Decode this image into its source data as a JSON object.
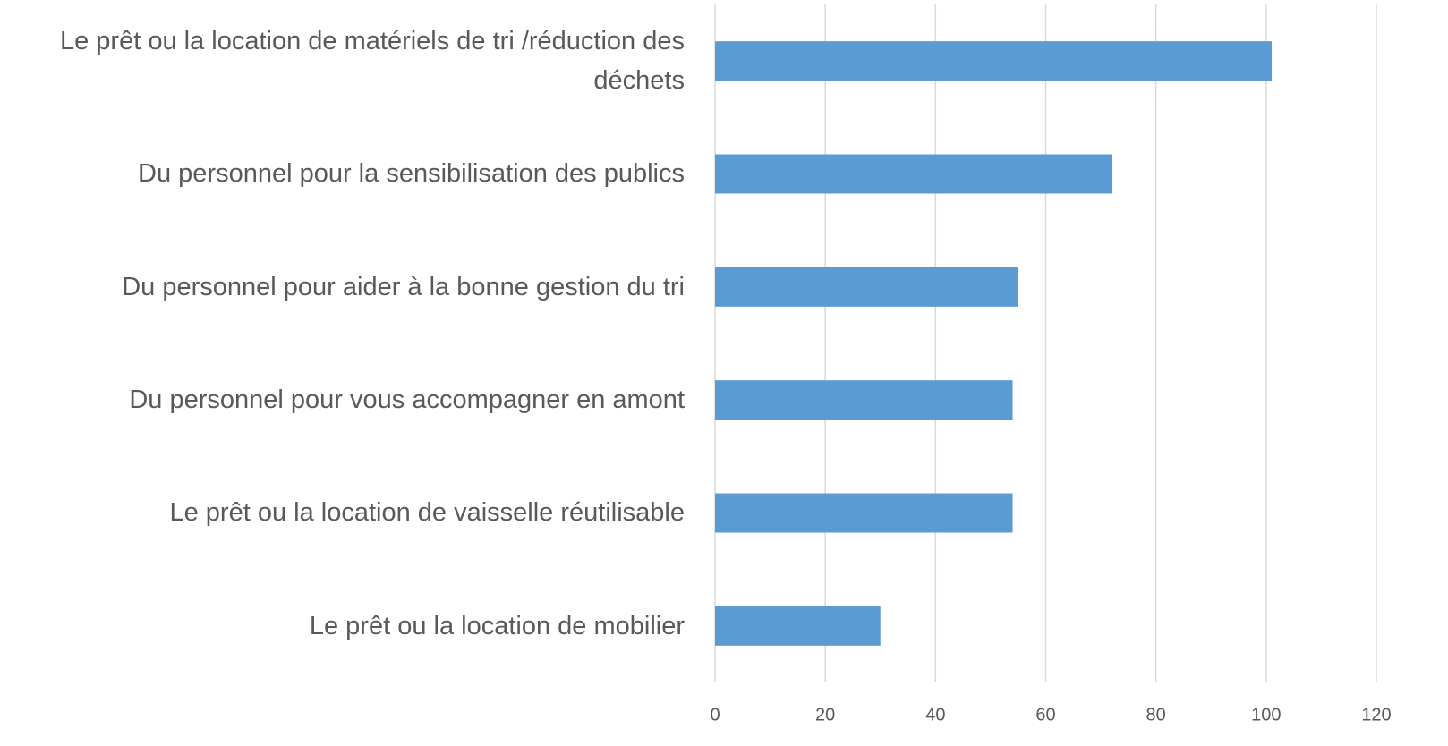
{
  "chart_data": {
    "type": "bar",
    "orientation": "horizontal",
    "categories": [
      "Le prêt ou la location de matériels de tri /réduction des déchets",
      "Du personnel pour la sensibilisation des publics",
      "Du personnel pour aider à la bonne gestion du tri",
      "Du personnel pour vous accompagner en amont",
      "Le prêt ou la location de vaisselle réutilisable",
      "Le prêt ou la location de mobilier"
    ],
    "values": [
      101,
      72,
      55,
      54,
      54,
      30
    ],
    "color": "#5b9bd5",
    "xlim": [
      0,
      120
    ],
    "xticks": [
      0,
      20,
      40,
      60,
      80,
      100,
      120
    ],
    "grid": true
  }
}
